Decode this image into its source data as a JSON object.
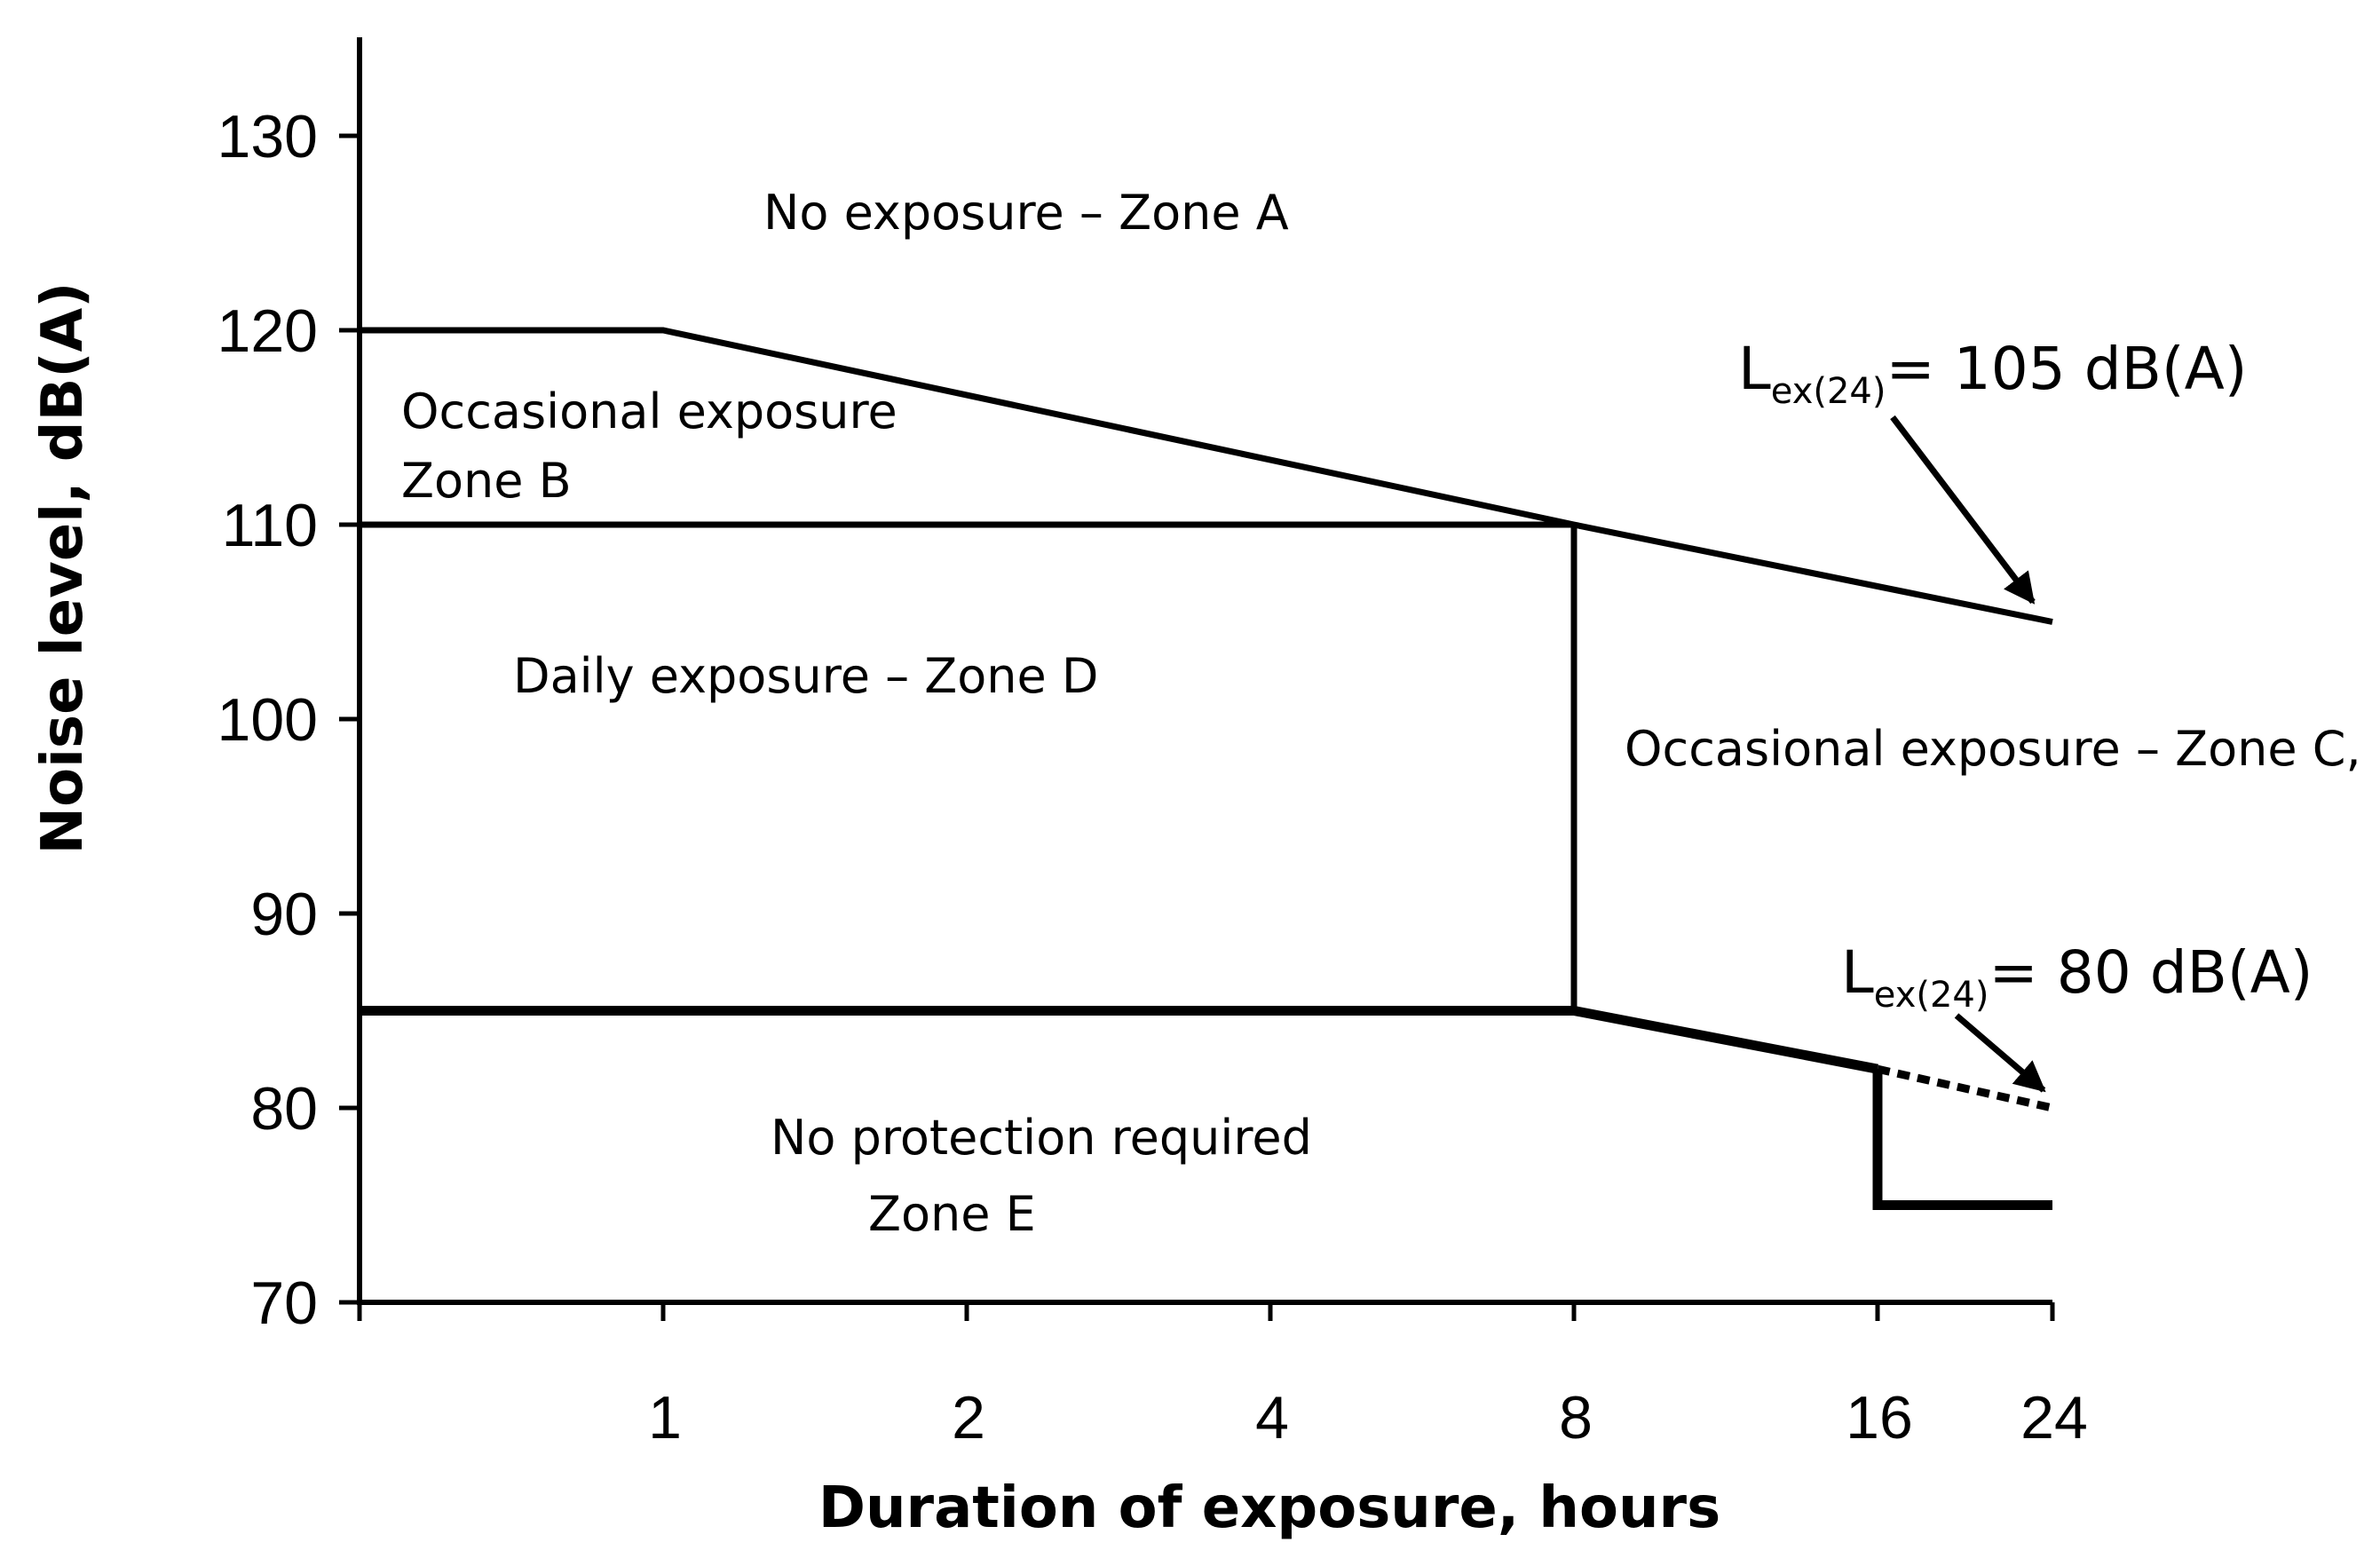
{
  "chart_data": {
    "type": "line",
    "xlabel": "Duration of exposure, hours",
    "ylabel": "Noise level, dB(A)",
    "x_ticks": [
      "1",
      "2",
      "4",
      "8",
      "16",
      "24"
    ],
    "x_scale": "logarithmic (log2), ticks at 1, 2, 4, 8, 16, 24 hours",
    "ylim": [
      70,
      130
    ],
    "y_ticks": [
      130,
      120,
      110,
      100,
      90,
      80,
      70
    ],
    "grid": false,
    "legend": "none",
    "series": [
      {
        "style": "solid",
        "x": [
          0.5,
          1,
          8,
          24
        ],
        "y": [
          120,
          120,
          110,
          105
        ]
      },
      {
        "style": "solid",
        "x": [
          0.5,
          8
        ],
        "y": [
          110,
          110
        ]
      },
      {
        "style": "solid",
        "x": [
          8,
          8
        ],
        "y": [
          110,
          85
        ]
      },
      {
        "style": "solid-thick",
        "x": [
          0.5,
          8,
          16
        ],
        "y": [
          85,
          85,
          82
        ]
      },
      {
        "style": "dotted",
        "x": [
          16,
          24
        ],
        "y": [
          82,
          80
        ]
      },
      {
        "style": "solid-thick",
        "x": [
          16,
          16,
          24
        ],
        "y": [
          82,
          75,
          75
        ]
      }
    ],
    "annotations": [
      {
        "name": "zone-a",
        "lines": [
          "No exposure – Zone A"
        ]
      },
      {
        "name": "zone-b",
        "lines": [
          "Occasional exposure",
          "Zone B"
        ]
      },
      {
        "name": "zone-c",
        "lines": [
          "Occasional exposure – Zone C,"
        ]
      },
      {
        "name": "zone-d",
        "lines": [
          "Daily exposure – Zone D"
        ]
      },
      {
        "name": "zone-e",
        "lines": [
          "No protection required",
          "Zone E"
        ]
      }
    ],
    "lex_labels": [
      {
        "name": "lex-105",
        "main": "L",
        "sub": "ex(24)",
        "rest": "= 105 dB(A)",
        "points_to": {
          "x": 24,
          "y": 105
        }
      },
      {
        "name": "lex-80",
        "main": "L",
        "sub": "ex(24)",
        "rest": "= 80 dB(A)",
        "points_to": {
          "x": 24,
          "y": 80
        }
      }
    ]
  }
}
